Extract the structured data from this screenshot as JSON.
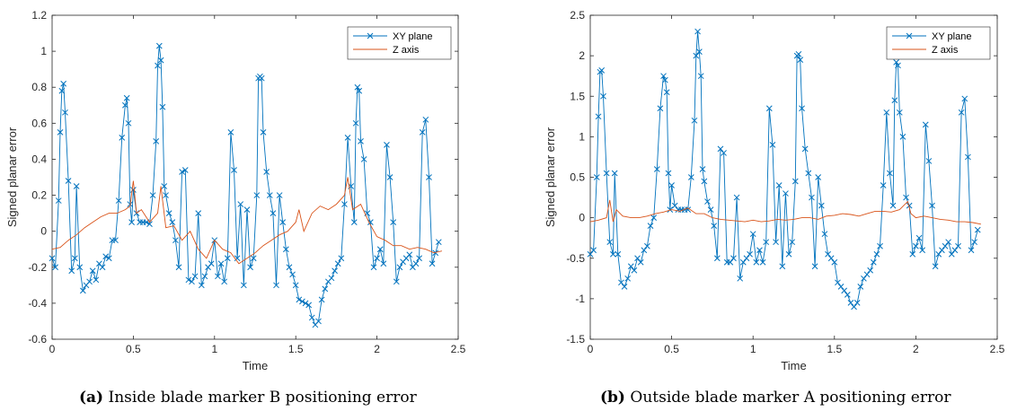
{
  "chart_data": [
    {
      "type": "line",
      "panel_label": "(a)",
      "caption": "Inside blade marker B positioning error",
      "xlabel": "Time",
      "ylabel": "Signed planar error",
      "xlim": [
        0,
        2.5
      ],
      "ylim": [
        -0.6,
        1.2
      ],
      "xticks": [
        "0",
        "0.5",
        "1",
        "1.5",
        "2",
        "2.5"
      ],
      "yticks": [
        "-0.6",
        "-0.4",
        "-0.2",
        "0",
        "0.2",
        "0.4",
        "0.6",
        "0.8",
        "1",
        "1.2"
      ],
      "legend_position": "top-right",
      "grid": false,
      "series": [
        {
          "name": "XY plane",
          "color": "#0072BD",
          "marker": "x",
          "x": [
            0.0,
            0.02,
            0.04,
            0.05,
            0.06,
            0.07,
            0.08,
            0.1,
            0.12,
            0.14,
            0.15,
            0.17,
            0.19,
            0.21,
            0.23,
            0.25,
            0.27,
            0.29,
            0.31,
            0.33,
            0.35,
            0.37,
            0.39,
            0.41,
            0.43,
            0.45,
            0.46,
            0.47,
            0.48,
            0.49,
            0.5,
            0.52,
            0.54,
            0.56,
            0.58,
            0.6,
            0.62,
            0.64,
            0.65,
            0.66,
            0.67,
            0.68,
            0.69,
            0.7,
            0.72,
            0.74,
            0.76,
            0.78,
            0.8,
            0.82,
            0.84,
            0.86,
            0.88,
            0.9,
            0.92,
            0.94,
            0.96,
            0.98,
            1.0,
            1.02,
            1.04,
            1.06,
            1.08,
            1.1,
            1.12,
            1.14,
            1.16,
            1.18,
            1.2,
            1.22,
            1.24,
            1.26,
            1.27,
            1.28,
            1.29,
            1.3,
            1.32,
            1.34,
            1.36,
            1.38,
            1.4,
            1.42,
            1.44,
            1.46,
            1.48,
            1.5,
            1.52,
            1.54,
            1.56,
            1.58,
            1.6,
            1.62,
            1.64,
            1.66,
            1.68,
            1.7,
            1.72,
            1.74,
            1.76,
            1.78,
            1.8,
            1.82,
            1.84,
            1.86,
            1.87,
            1.88,
            1.89,
            1.9,
            1.92,
            1.94,
            1.96,
            1.98,
            2.0,
            2.02,
            2.04,
            2.06,
            2.08,
            2.1,
            2.12,
            2.14,
            2.16,
            2.18,
            2.2,
            2.22,
            2.24,
            2.26,
            2.28,
            2.3,
            2.32,
            2.34,
            2.36,
            2.38
          ],
          "y": [
            -0.15,
            -0.2,
            0.17,
            0.55,
            0.78,
            0.82,
            0.66,
            0.28,
            -0.22,
            -0.15,
            0.25,
            -0.2,
            -0.33,
            -0.3,
            -0.28,
            -0.22,
            -0.27,
            -0.18,
            -0.2,
            -0.14,
            -0.15,
            -0.05,
            -0.05,
            0.17,
            0.52,
            0.7,
            0.74,
            0.6,
            0.15,
            0.05,
            0.23,
            0.1,
            0.05,
            0.05,
            0.05,
            0.04,
            0.2,
            0.5,
            0.92,
            1.03,
            0.95,
            0.69,
            0.25,
            0.2,
            0.1,
            0.05,
            -0.05,
            -0.2,
            0.33,
            0.34,
            -0.27,
            -0.28,
            -0.25,
            0.1,
            -0.3,
            -0.25,
            -0.2,
            -0.18,
            -0.05,
            -0.25,
            -0.18,
            -0.28,
            -0.15,
            0.55,
            0.34,
            -0.15,
            0.15,
            -0.3,
            0.12,
            -0.2,
            -0.15,
            0.2,
            0.85,
            0.86,
            0.85,
            0.55,
            0.33,
            0.2,
            0.1,
            -0.3,
            0.2,
            0.05,
            -0.1,
            -0.2,
            -0.24,
            -0.3,
            -0.38,
            -0.39,
            -0.4,
            -0.41,
            -0.48,
            -0.52,
            -0.5,
            -0.38,
            -0.32,
            -0.28,
            -0.26,
            -0.22,
            -0.18,
            -0.15,
            0.15,
            0.52,
            0.25,
            0.05,
            0.6,
            0.8,
            0.78,
            0.5,
            0.4,
            0.1,
            0.05,
            -0.2,
            -0.15,
            -0.1,
            -0.18,
            0.48,
            0.3,
            0.05,
            -0.28,
            -0.2,
            -0.17,
            -0.15,
            -0.13,
            -0.2,
            -0.18,
            -0.15,
            0.55,
            0.62,
            0.3,
            -0.18,
            -0.12,
            -0.06
          ],
          "marker_indices_note": ""
        },
        {
          "name": "Z axis",
          "color": "#D95319",
          "marker": "none",
          "x": [
            0.0,
            0.05,
            0.1,
            0.15,
            0.2,
            0.25,
            0.3,
            0.35,
            0.4,
            0.45,
            0.48,
            0.5,
            0.52,
            0.55,
            0.6,
            0.65,
            0.67,
            0.7,
            0.75,
            0.8,
            0.85,
            0.9,
            0.95,
            1.0,
            1.05,
            1.1,
            1.15,
            1.2,
            1.25,
            1.3,
            1.35,
            1.4,
            1.45,
            1.5,
            1.52,
            1.55,
            1.6,
            1.65,
            1.7,
            1.75,
            1.8,
            1.82,
            1.85,
            1.9,
            1.95,
            2.0,
            2.05,
            2.1,
            2.15,
            2.2,
            2.25,
            2.3,
            2.35,
            2.4
          ],
          "y": [
            -0.1,
            -0.09,
            -0.05,
            -0.02,
            0.02,
            0.05,
            0.08,
            0.1,
            0.1,
            0.12,
            0.14,
            0.28,
            0.1,
            0.12,
            0.05,
            0.1,
            0.25,
            0.02,
            0.03,
            -0.05,
            0.0,
            -0.1,
            -0.15,
            -0.05,
            -0.1,
            -0.12,
            -0.18,
            -0.15,
            -0.12,
            -0.08,
            -0.05,
            -0.02,
            0.0,
            0.05,
            0.12,
            0.0,
            0.1,
            0.14,
            0.12,
            0.15,
            0.2,
            0.3,
            0.12,
            0.15,
            0.05,
            -0.03,
            -0.05,
            -0.08,
            -0.08,
            -0.1,
            -0.09,
            -0.1,
            -0.12,
            -0.11
          ]
        }
      ]
    },
    {
      "type": "line",
      "panel_label": "(b)",
      "caption": "Outside blade marker A positioning error",
      "xlabel": "Time",
      "ylabel": "Signed planar error",
      "xlim": [
        0,
        2.5
      ],
      "ylim": [
        -1.5,
        2.5
      ],
      "xticks": [
        "0",
        "0.5",
        "1",
        "1.5",
        "2",
        "2.5"
      ],
      "yticks": [
        "-1.5",
        "-1",
        "-0.5",
        "0",
        "0.5",
        "1",
        "1.5",
        "2",
        "2.5"
      ],
      "legend_position": "top-right",
      "grid": false,
      "series": [
        {
          "name": "XY plane",
          "color": "#0072BD",
          "marker": "x",
          "x": [
            0.0,
            0.02,
            0.04,
            0.05,
            0.06,
            0.07,
            0.08,
            0.1,
            0.12,
            0.14,
            0.15,
            0.17,
            0.19,
            0.21,
            0.23,
            0.25,
            0.27,
            0.29,
            0.31,
            0.33,
            0.35,
            0.37,
            0.39,
            0.41,
            0.43,
            0.45,
            0.46,
            0.47,
            0.48,
            0.49,
            0.5,
            0.52,
            0.54,
            0.56,
            0.58,
            0.6,
            0.62,
            0.64,
            0.65,
            0.66,
            0.67,
            0.68,
            0.69,
            0.7,
            0.72,
            0.74,
            0.76,
            0.78,
            0.8,
            0.82,
            0.84,
            0.86,
            0.88,
            0.9,
            0.92,
            0.94,
            0.96,
            0.98,
            1.0,
            1.02,
            1.04,
            1.06,
            1.08,
            1.1,
            1.12,
            1.14,
            1.16,
            1.18,
            1.2,
            1.22,
            1.24,
            1.26,
            1.27,
            1.28,
            1.29,
            1.3,
            1.32,
            1.34,
            1.36,
            1.38,
            1.4,
            1.42,
            1.44,
            1.46,
            1.48,
            1.5,
            1.52,
            1.54,
            1.56,
            1.58,
            1.6,
            1.62,
            1.64,
            1.66,
            1.68,
            1.7,
            1.72,
            1.74,
            1.76,
            1.78,
            1.8,
            1.82,
            1.84,
            1.86,
            1.87,
            1.88,
            1.89,
            1.9,
            1.92,
            1.94,
            1.96,
            1.98,
            2.0,
            2.02,
            2.04,
            2.06,
            2.08,
            2.1,
            2.12,
            2.14,
            2.16,
            2.18,
            2.2,
            2.22,
            2.24,
            2.26,
            2.28,
            2.3,
            2.32,
            2.34,
            2.36,
            2.38
          ],
          "y": [
            -0.45,
            -0.4,
            0.5,
            1.25,
            1.8,
            1.82,
            1.5,
            0.55,
            -0.3,
            -0.45,
            0.55,
            -0.45,
            -0.8,
            -0.85,
            -0.75,
            -0.6,
            -0.65,
            -0.5,
            -0.55,
            -0.4,
            -0.35,
            -0.1,
            0.0,
            0.6,
            1.35,
            1.75,
            1.7,
            1.55,
            0.55,
            0.1,
            0.4,
            0.15,
            0.1,
            0.1,
            0.1,
            0.1,
            0.5,
            1.2,
            2.0,
            2.3,
            2.05,
            1.75,
            0.6,
            0.45,
            0.2,
            0.1,
            -0.1,
            -0.5,
            0.85,
            0.8,
            -0.55,
            -0.55,
            -0.5,
            0.25,
            -0.75,
            -0.55,
            -0.5,
            -0.45,
            -0.2,
            -0.55,
            -0.4,
            -0.55,
            -0.3,
            1.35,
            0.9,
            -0.3,
            0.4,
            -0.6,
            0.3,
            -0.45,
            -0.3,
            0.45,
            2.0,
            2.02,
            1.95,
            1.35,
            0.85,
            0.55,
            0.25,
            -0.6,
            0.5,
            0.15,
            -0.2,
            -0.45,
            -0.5,
            -0.55,
            -0.8,
            -0.85,
            -0.9,
            -0.95,
            -1.05,
            -1.1,
            -1.05,
            -0.85,
            -0.75,
            -0.7,
            -0.65,
            -0.55,
            -0.45,
            -0.35,
            0.4,
            1.3,
            0.55,
            0.15,
            1.45,
            1.92,
            1.88,
            1.3,
            1.0,
            0.25,
            0.15,
            -0.45,
            -0.35,
            -0.25,
            -0.4,
            1.15,
            0.7,
            0.15,
            -0.6,
            -0.45,
            -0.4,
            -0.35,
            -0.3,
            -0.45,
            -0.4,
            -0.35,
            1.3,
            1.47,
            0.75,
            -0.4,
            -0.3,
            -0.15
          ],
          "marker_indices_note": ""
        },
        {
          "name": "Z axis",
          "color": "#D95319",
          "marker": "none",
          "x": [
            0.0,
            0.05,
            0.1,
            0.12,
            0.14,
            0.16,
            0.2,
            0.25,
            0.3,
            0.35,
            0.4,
            0.45,
            0.5,
            0.55,
            0.6,
            0.65,
            0.7,
            0.75,
            0.8,
            0.85,
            0.9,
            0.95,
            1.0,
            1.05,
            1.1,
            1.15,
            1.2,
            1.25,
            1.3,
            1.35,
            1.4,
            1.45,
            1.5,
            1.55,
            1.6,
            1.65,
            1.7,
            1.75,
            1.8,
            1.85,
            1.9,
            1.95,
            1.97,
            2.0,
            2.05,
            2.1,
            2.15,
            2.2,
            2.25,
            2.3,
            2.35,
            2.4
          ],
          "y": [
            -0.05,
            -0.03,
            0.0,
            0.22,
            -0.05,
            0.1,
            0.02,
            0.0,
            0.0,
            0.02,
            0.05,
            0.07,
            0.1,
            0.08,
            0.12,
            0.05,
            0.05,
            0.0,
            -0.02,
            -0.03,
            -0.04,
            -0.05,
            -0.03,
            -0.05,
            -0.04,
            -0.02,
            -0.03,
            -0.02,
            0.0,
            0.0,
            -0.02,
            0.02,
            0.03,
            0.05,
            0.04,
            0.02,
            0.05,
            0.08,
            0.08,
            0.07,
            0.1,
            0.2,
            0.05,
            0.0,
            0.02,
            0.0,
            -0.02,
            -0.03,
            -0.05,
            -0.05,
            -0.06,
            -0.08
          ]
        }
      ]
    }
  ]
}
